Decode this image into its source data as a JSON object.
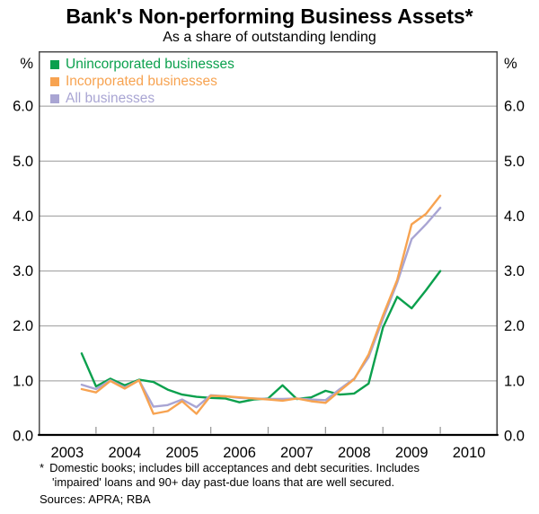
{
  "header": {
    "title": "Bank's Non-performing Business Assets*",
    "subtitle": "As a share of outstanding lending"
  },
  "chart_data": {
    "type": "line",
    "title": "Bank's Non-performing Business Assets*",
    "subtitle": "As a share of outstanding lending",
    "unit": "%",
    "grid": true,
    "legend_position": "top-left",
    "x_axis": {
      "min": 2003,
      "max": 2011,
      "tick_years": [
        2004,
        2005,
        2006,
        2007,
        2008,
        2009,
        2010
      ],
      "year_labels": [
        "2003",
        "2004",
        "2005",
        "2006",
        "2007",
        "2008",
        "2009",
        "2010"
      ]
    },
    "y_axis": {
      "min": 0,
      "max": 7,
      "unit_label": "%",
      "tick_values": [
        0,
        1,
        2,
        3,
        4,
        5,
        6
      ],
      "tick_labels": [
        "0.0",
        "1.0",
        "2.0",
        "3.0",
        "4.0",
        "5.0",
        "6.0"
      ],
      "label_sides": "both"
    },
    "x_start": 2003.75,
    "x_step": 0.25,
    "x_labels": [
      "2003 Q3",
      "2003 Q4",
      "2004 Q1",
      "2004 Q2",
      "2004 Q3",
      "2004 Q4",
      "2005 Q1",
      "2005 Q2",
      "2005 Q3",
      "2005 Q4",
      "2006 Q1",
      "2006 Q2",
      "2006 Q3",
      "2006 Q4",
      "2007 Q1",
      "2007 Q2",
      "2007 Q3",
      "2007 Q4",
      "2008 Q1",
      "2008 Q2",
      "2008 Q3",
      "2008 Q4",
      "2009 Q1",
      "2009 Q2",
      "2009 Q3",
      "2009 Q4"
    ],
    "series": [
      {
        "name": "Unincorporated businesses",
        "color": "#0BA04D",
        "values": [
          1.5,
          0.9,
          1.04,
          0.92,
          1.02,
          0.98,
          0.84,
          0.75,
          0.71,
          0.69,
          0.68,
          0.61,
          0.66,
          0.68,
          0.92,
          0.67,
          0.7,
          0.82,
          0.75,
          0.77,
          0.95,
          1.97,
          2.53,
          2.32,
          2.65,
          3.0
        ]
      },
      {
        "name": "Incorporated businesses",
        "color": "#F7A351",
        "values": [
          0.85,
          0.79,
          1.0,
          0.86,
          1.01,
          0.4,
          0.45,
          0.63,
          0.4,
          0.73,
          0.72,
          0.7,
          0.68,
          0.66,
          0.64,
          0.68,
          0.63,
          0.6,
          0.82,
          1.03,
          1.48,
          2.19,
          2.84,
          3.85,
          4.04,
          4.37
        ]
      },
      {
        "name": "All businesses",
        "color": "#A9A5D3",
        "values": [
          0.93,
          0.85,
          1.01,
          0.88,
          1.01,
          0.53,
          0.56,
          0.66,
          0.52,
          0.74,
          0.72,
          0.69,
          0.68,
          0.67,
          0.67,
          0.68,
          0.66,
          0.65,
          0.85,
          1.04,
          1.43,
          2.13,
          2.79,
          3.58,
          3.85,
          4.15
        ]
      }
    ]
  },
  "footnote": {
    "marker": "*",
    "line1": "Domestic books; includes bill acceptances and debt securities. Includes",
    "line2": "'impaired' loans and 90+ day past-due loans that are well secured.",
    "sources": "Sources: APRA; RBA"
  },
  "colors": {
    "gridline": "#999999",
    "border": "#4C4C4C",
    "axis": "#000000",
    "tick": "#9A9A9A",
    "text": "#000000"
  }
}
